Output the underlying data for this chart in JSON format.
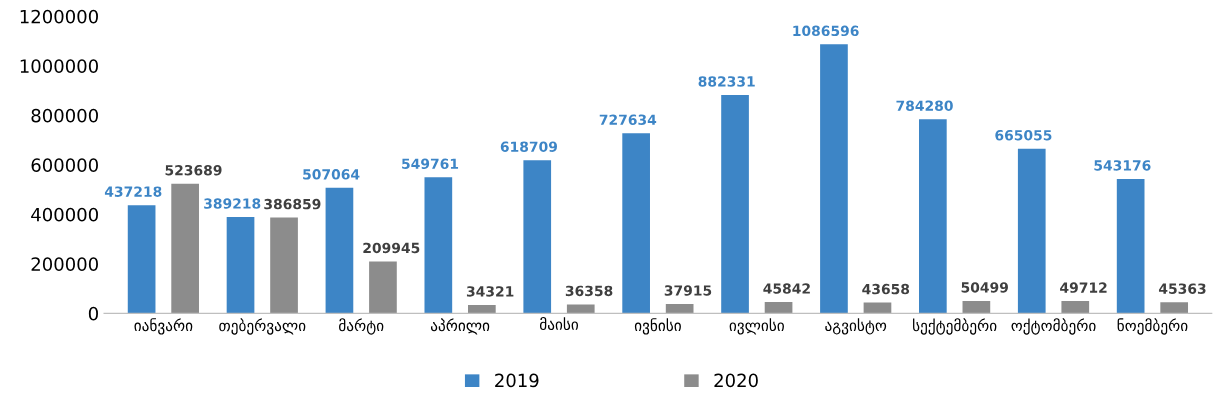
{
  "chart_data": {
    "type": "bar",
    "categories": [
      "იანვარი",
      "თებერვალი",
      "მარტი",
      "აპრილი",
      "მაისი",
      "ივნისი",
      "ივლისი",
      "აგვისტო",
      "სექტემბერი",
      "ოქტომბერი",
      "ნოემბერი"
    ],
    "series": [
      {
        "name": "2019",
        "color": "#3d85c6",
        "values": [
          437218,
          389218,
          507064,
          549761,
          618709,
          727634,
          882331,
          1086596,
          784280,
          665055,
          543176
        ]
      },
      {
        "name": "2020",
        "color": "#8c8c8c",
        "values": [
          523689,
          386859,
          209945,
          34321,
          36358,
          37915,
          45842,
          43658,
          50499,
          49712,
          45363
        ]
      }
    ],
    "ylim": [
      0,
      1200000
    ],
    "yticks": [
      0,
      200000,
      400000,
      600000,
      800000,
      1000000,
      1200000
    ],
    "data_labels": true,
    "grid": false,
    "legend": "bottom"
  }
}
